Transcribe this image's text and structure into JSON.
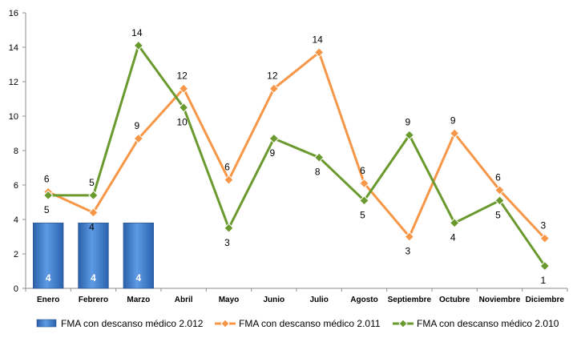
{
  "chart_data": {
    "type": "line",
    "categories": [
      "Enero",
      "Febrero",
      "Marzo",
      "Abril",
      "Mayo",
      "Junio",
      "Julio",
      "Agosto",
      "Septiembre",
      "Octubre",
      "Noviembre",
      "Diciembre"
    ],
    "ylim": [
      0,
      16
    ],
    "yticks": [
      0,
      2,
      4,
      6,
      8,
      10,
      12,
      14,
      16
    ],
    "grid": false,
    "legend_position": "bottom",
    "series": [
      {
        "name": "FMA con descanso médico 2.012",
        "kind": "bar",
        "color": "#3a78c8",
        "values": [
          3.8,
          3.8,
          3.8,
          null,
          null,
          null,
          null,
          null,
          null,
          null,
          null,
          null
        ],
        "labels": [
          "4",
          "4",
          "4",
          "",
          "",
          "",
          "",
          "",
          "",
          "",
          "",
          ""
        ]
      },
      {
        "name": "FMA con descanso médico 2.011",
        "kind": "line",
        "color": "#f79646",
        "values": [
          5.6,
          4.4,
          8.7,
          11.6,
          6.3,
          11.6,
          13.7,
          6.1,
          3.0,
          9.0,
          5.7,
          2.9
        ],
        "labels": [
          "6",
          "4",
          "9",
          "12",
          "6",
          "12",
          "14",
          "6",
          "3",
          "9",
          "6",
          "3"
        ]
      },
      {
        "name": "FMA con descanso médico 2.010",
        "kind": "line",
        "color": "#6a9a2e",
        "values": [
          5.4,
          5.4,
          14.1,
          10.5,
          3.5,
          8.7,
          7.6,
          5.1,
          8.9,
          3.8,
          5.1,
          1.3
        ],
        "labels": [
          "5",
          "5",
          "14",
          "10",
          "3",
          "9",
          "8",
          "5",
          "9",
          "4",
          "5",
          "1"
        ]
      }
    ]
  }
}
